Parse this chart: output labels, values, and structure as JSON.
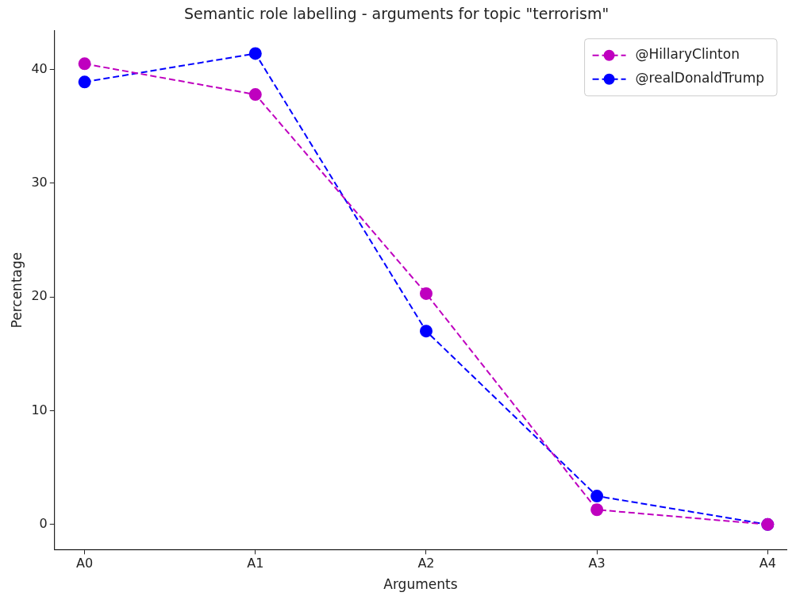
{
  "chart_data": {
    "type": "line",
    "title": "Semantic role labelling - arguments for topic \"terrorism\"",
    "xlabel": "Arguments",
    "ylabel": "Percentage",
    "categories": [
      "A0",
      "A1",
      "A2",
      "A3",
      "A4"
    ],
    "series": [
      {
        "name": "@HillaryClinton",
        "color": "#bf00bf",
        "values": [
          40.5,
          37.8,
          20.3,
          1.3,
          0
        ]
      },
      {
        "name": "@realDonaldTrump",
        "color": "#0000ff",
        "values": [
          38.9,
          41.4,
          17.0,
          2.5,
          0
        ]
      }
    ],
    "ylim": [
      -2.2,
      43.4
    ],
    "yticks": [
      0,
      10,
      20,
      30,
      40
    ],
    "grid": false,
    "legend": "top right",
    "marker": "circle",
    "line_style": "dashed"
  }
}
